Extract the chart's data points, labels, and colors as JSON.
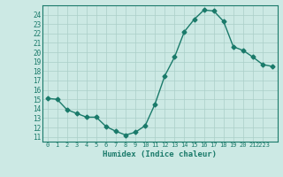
{
  "x": [
    0,
    1,
    2,
    3,
    4,
    5,
    6,
    7,
    8,
    9,
    10,
    11,
    12,
    13,
    14,
    15,
    16,
    17,
    18,
    19,
    20,
    21,
    22,
    23
  ],
  "y": [
    15.1,
    15.0,
    13.9,
    13.5,
    13.1,
    13.1,
    12.1,
    11.6,
    11.2,
    11.5,
    12.2,
    14.5,
    17.5,
    19.5,
    22.2,
    23.5,
    24.5,
    24.4,
    23.3,
    20.6,
    20.2,
    19.5,
    18.7,
    18.5
  ],
  "line_color": "#1a7a6a",
  "marker": "D",
  "markersize": 2.5,
  "linewidth": 1.0,
  "bg_color": "#cce9e4",
  "grid_color": "#aacfc8",
  "xlabel": "Humidex (Indice chaleur)",
  "xlabel_fontsize": 6.5,
  "ytick_min": 11,
  "ytick_max": 24,
  "ylim": [
    10.5,
    25.0
  ],
  "xlim": [
    -0.5,
    23.5
  ]
}
